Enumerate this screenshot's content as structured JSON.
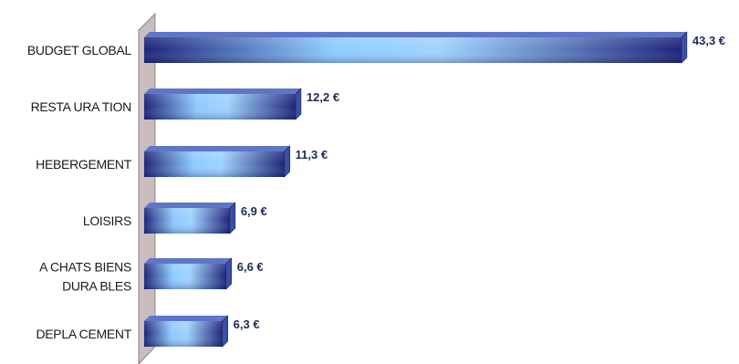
{
  "chart_data": {
    "type": "bar",
    "orientation": "horizontal",
    "categories": [
      [
        "BUDGET GLOBAL"
      ],
      [
        "RESTA URA TION"
      ],
      [
        "HEBERGEMENT"
      ],
      [
        "LOISIRS"
      ],
      [
        "A CHATS BIENS",
        "DURA BLES"
      ],
      [
        "DEPLA CEMENT"
      ]
    ],
    "values": [
      43.3,
      12.2,
      11.3,
      6.9,
      6.6,
      6.3
    ],
    "value_labels": [
      "43,3 €",
      "12,2 €",
      "11,3 €",
      "6,9 €",
      "6,6 €",
      "6,3 €"
    ],
    "grid": false,
    "legend": "none",
    "colors": {
      "bar_dark": "#1c2479",
      "bar_light": "#8ecbff",
      "bar_side": "#3a4fa8",
      "wall": "#c8bcbc"
    }
  }
}
